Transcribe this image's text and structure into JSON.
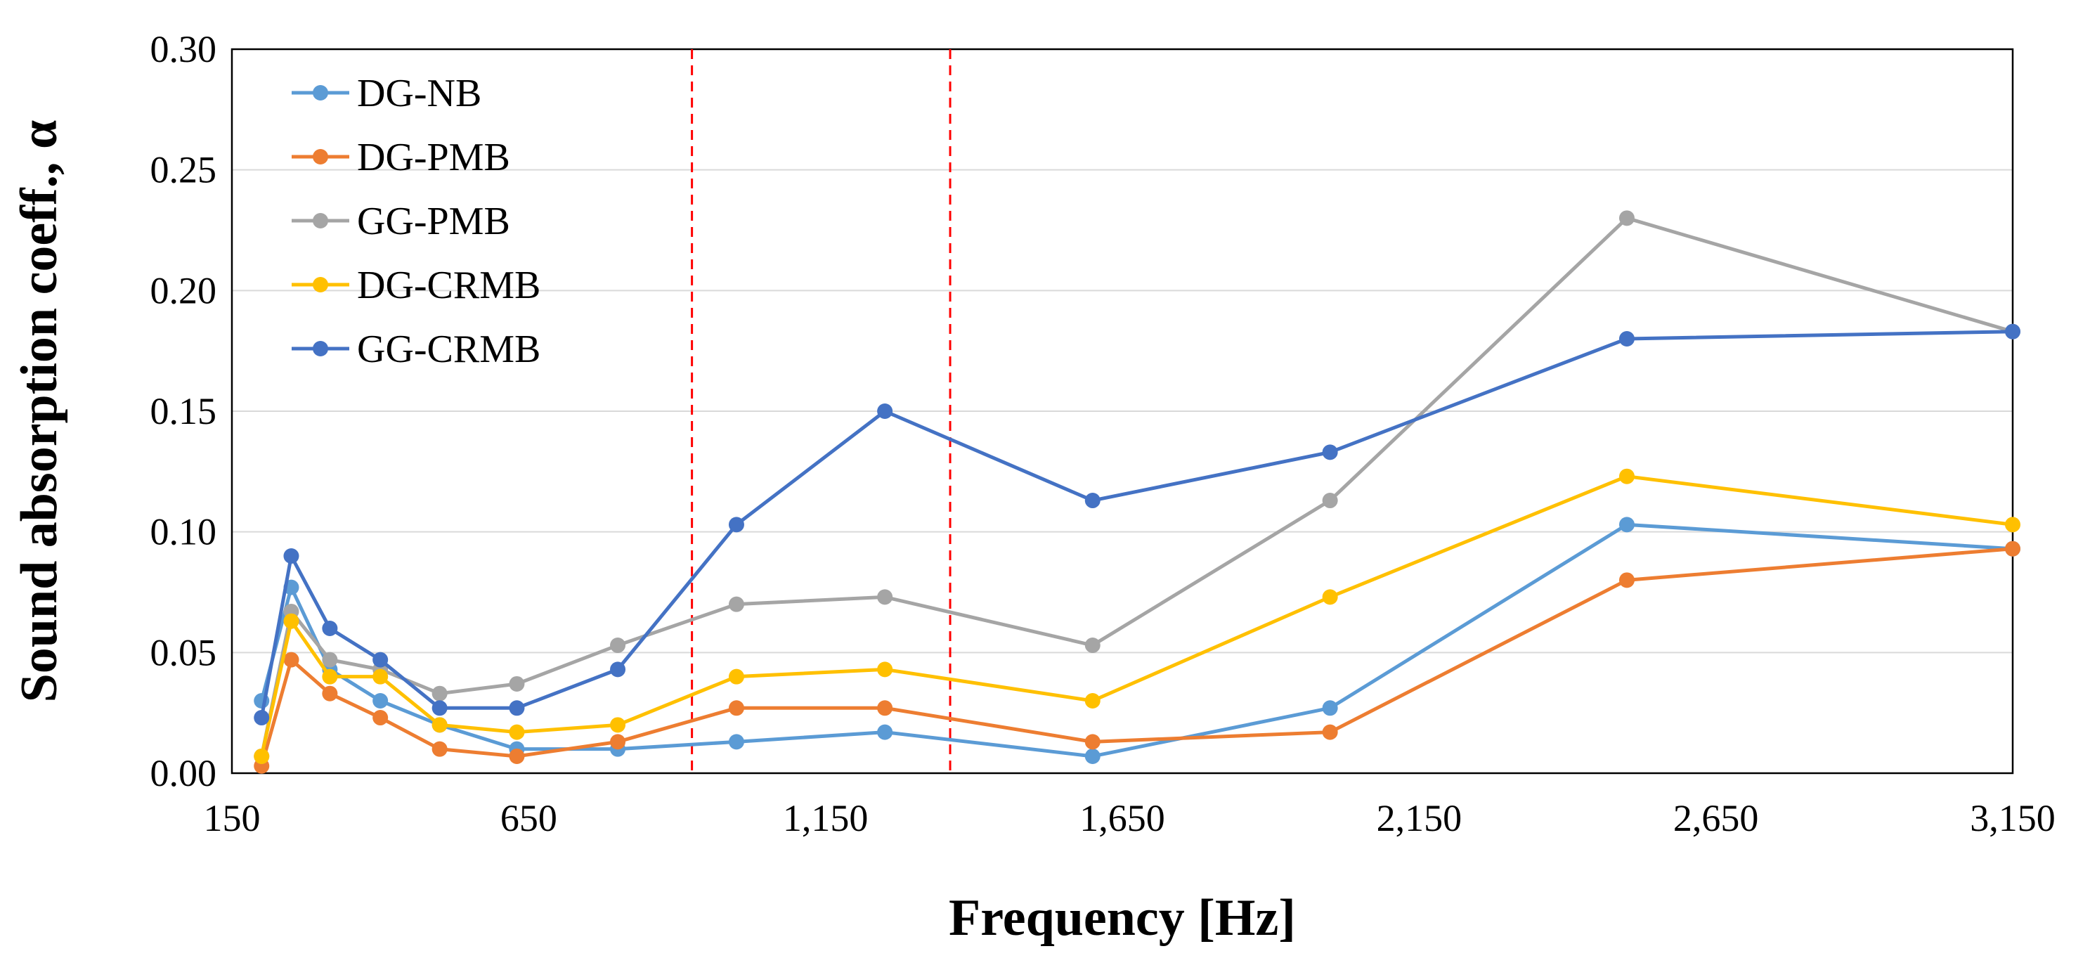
{
  "chart_data": {
    "type": "line",
    "title": "",
    "xlabel": "Frequency [Hz]",
    "ylabel": "Sound absorption coeff., α",
    "xlim": [
      150,
      3150
    ],
    "ylim": [
      0,
      0.3
    ],
    "xticks": [
      150,
      650,
      1150,
      1650,
      2150,
      2650,
      3150
    ],
    "xtick_labels": [
      "150",
      "650",
      "1,150",
      "1,650",
      "2,150",
      "2,650",
      "3,150"
    ],
    "yticks": [
      0,
      0.05,
      0.1,
      0.15,
      0.2,
      0.25,
      0.3
    ],
    "ytick_labels": [
      "0.00",
      "0.05",
      "0.10",
      "0.15",
      "0.20",
      "0.25",
      "0.30"
    ],
    "grid": "horizontal",
    "legend_position": "top-left",
    "x": [
      200,
      250,
      315,
      400,
      500,
      630,
      800,
      1000,
      1250,
      1600,
      2000,
      2500,
      3150
    ],
    "reference_lines": [
      {
        "x": 925,
        "color": "#FF0000",
        "style": "dashed"
      },
      {
        "x": 1360,
        "color": "#FF0000",
        "style": "dashed"
      }
    ],
    "series": [
      {
        "name": "DG-NB",
        "color": "#5B9BD5",
        "values": [
          0.03,
          0.077,
          0.043,
          0.03,
          0.02,
          0.01,
          0.01,
          0.013,
          0.017,
          0.007,
          0.027,
          0.103,
          0.093
        ]
      },
      {
        "name": "DG-PMB",
        "color": "#ED7D31",
        "values": [
          0.003,
          0.047,
          0.033,
          0.023,
          0.01,
          0.007,
          0.013,
          0.027,
          0.027,
          0.013,
          0.017,
          0.08,
          0.093
        ]
      },
      {
        "name": "GG-PMB",
        "color": "#A5A5A5",
        "values": [
          0.007,
          0.067,
          0.047,
          0.043,
          0.033,
          0.037,
          0.053,
          0.07,
          0.073,
          0.053,
          0.113,
          0.23,
          0.183
        ]
      },
      {
        "name": "DG-CRMB",
        "color": "#FFC000",
        "values": [
          0.007,
          0.063,
          0.04,
          0.04,
          0.02,
          0.017,
          0.02,
          0.04,
          0.043,
          0.03,
          0.073,
          0.123,
          0.103
        ]
      },
      {
        "name": "GG-CRMB",
        "color": "#4472C4",
        "values": [
          0.023,
          0.09,
          0.06,
          0.047,
          0.027,
          0.027,
          0.043,
          0.103,
          0.15,
          0.113,
          0.133,
          0.18,
          0.183
        ]
      }
    ]
  }
}
